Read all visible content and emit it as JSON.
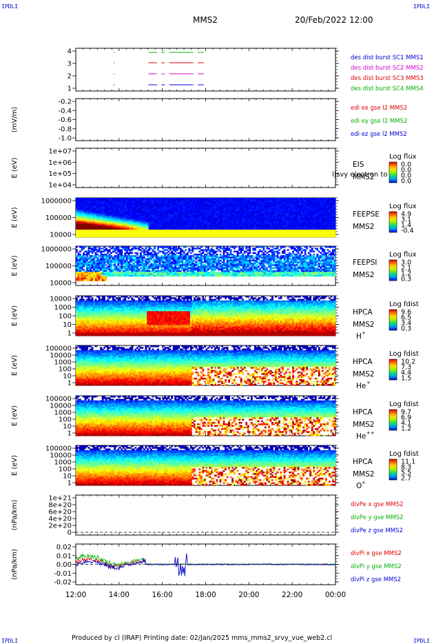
{
  "header": {
    "corner_tl": "IPDLI",
    "corner_tr": "IPDLI",
    "corner_bl": "IPDLI",
    "corner_br": "IPDLI",
    "spacecraft": "MMS2",
    "datetime": "20/Feb/2022 12:00"
  },
  "footer": {
    "text": "Produced by cl (IRAP)   Printing date: 02/Jan/2025   mms_mms2_srvy_vue_web2.cl"
  },
  "colors": {
    "red": "#e00000",
    "green": "#00b000",
    "blue": "#0000d0",
    "magenta": "#d000d0"
  },
  "chart_data": {
    "type": "multi-panel time series",
    "x_ticks": [
      "12:00",
      "14:00",
      "16:00",
      "18:00",
      "20:00",
      "22:00",
      "00:00"
    ],
    "panels": [
      {
        "id": "burst",
        "y_ticks": [
          "4",
          "3",
          "2",
          "1"
        ],
        "legend": [
          {
            "text": "des dist burst SC1 MMS1",
            "color": "#0000d0"
          },
          {
            "text": "des dist burst SC2 MMS2",
            "color": "#d000d0"
          },
          {
            "text": "des dist burst SC3 MMS3",
            "color": "#e00000"
          },
          {
            "text": "des dist burst SC4 MMS4",
            "color": "#00b000"
          }
        ]
      },
      {
        "id": "edi",
        "ylabel": "(mV/m)",
        "y_ticks": [
          "-0.2",
          "-0.4",
          "-0.6",
          "-0.8",
          "-1.0"
        ],
        "legend": [
          {
            "text": "edi ex gse l2 MMS2",
            "color": "#e00000"
          },
          {
            "text": "edi ey gse l2 MMS2",
            "color": "#00b000"
          },
          {
            "text": "edi ez gse l2 MMS2",
            "color": "#0000d0"
          }
        ]
      },
      {
        "id": "eis",
        "ylabel": "E (eV)",
        "y_ticks": [
          "1e+07",
          "1e+06",
          "1e+05",
          "1e+04"
        ],
        "labels": [
          "EIS",
          "MMS2"
        ],
        "overlay_text": "l|svy electron to",
        "cbar_title": "Log flux",
        "cbar_ticks": [
          "0.0",
          "0.0",
          "0.0",
          "0.0"
        ]
      },
      {
        "id": "feepse",
        "ylabel": "E (eV)",
        "y_ticks": [
          "1000000",
          "100000",
          "10000"
        ],
        "labels": [
          "FEEPSE",
          "MMS2"
        ],
        "cbar_title": "Log flux",
        "cbar_ticks": [
          "4.9",
          "3.1",
          "1.4",
          "-0.4"
        ]
      },
      {
        "id": "feepsi",
        "ylabel": "E (eV)",
        "y_ticks": [
          "1000000",
          "100000",
          "10000"
        ],
        "labels": [
          "FEEPSI",
          "MMS2"
        ],
        "cbar_title": "Log flux",
        "cbar_ticks": [
          "3.0",
          "2.1",
          "1.2",
          "0.3"
        ]
      },
      {
        "id": "hpca_h",
        "ylabel": "E (eV)",
        "y_ticks": [
          "10000",
          "1000",
          "100",
          "10",
          "1"
        ],
        "labels": [
          "HPCA",
          "MMS2"
        ],
        "species": "H",
        "species_sup": "+",
        "cbar_title": "Log fdist",
        "cbar_ticks": [
          "9.6",
          "6.5",
          "3.4",
          "0.3"
        ]
      },
      {
        "id": "hpca_he",
        "ylabel": "E (eV)",
        "y_ticks": [
          "100000",
          "10000",
          "1000",
          "100",
          "10",
          "1"
        ],
        "labels": [
          "HPCA",
          "MMS2"
        ],
        "species": "He",
        "species_sup": "+",
        "cbar_title": "Log fdist",
        "cbar_ticks": [
          "10.2",
          "7.3",
          "4.4",
          "1.5"
        ]
      },
      {
        "id": "hpca_hepp",
        "ylabel": "E (eV)",
        "y_ticks": [
          "100000",
          "10000",
          "1000",
          "100",
          "10",
          "1"
        ],
        "labels": [
          "HPCA",
          "MMS2"
        ],
        "species": "He",
        "species_sup": "++",
        "cbar_title": "Log fdist",
        "cbar_ticks": [
          "9.7",
          "6.9",
          "4.1",
          "1.2"
        ]
      },
      {
        "id": "hpca_o",
        "ylabel": "E (eV)",
        "y_ticks": [
          "100000",
          "10000",
          "1000",
          "100",
          "10",
          "1"
        ],
        "labels": [
          "HPCA",
          "MMS2"
        ],
        "species": "O",
        "species_sup": "+",
        "cbar_title": "Log fdist",
        "cbar_ticks": [
          "11.1",
          "8.3",
          "5.5",
          "2.7"
        ]
      },
      {
        "id": "divpe",
        "ylabel": "(nPa/km)",
        "y_ticks": [
          "1e+21",
          "8e+20",
          "6e+20",
          "4e+20",
          "2e+20",
          "0"
        ],
        "legend": [
          {
            "text": "divPe x gse MMS2",
            "color": "#e00000"
          },
          {
            "text": "divPe y gse MMS2",
            "color": "#00b000"
          },
          {
            "text": "divPe z gse MMS2",
            "color": "#0000d0"
          }
        ]
      },
      {
        "id": "divpi",
        "ylabel": "(nPa/km)",
        "y_ticks": [
          "0.02",
          "0.01",
          "0.00",
          "-0.01",
          "-0.02"
        ],
        "ylim": [
          -0.025,
          0.025
        ],
        "legend": [
          {
            "text": "divPi x gse MMS2",
            "color": "#e00000"
          },
          {
            "text": "divPi y gse MMS2",
            "color": "#00b000"
          },
          {
            "text": "divPi z gse MMS2",
            "color": "#0000d0"
          }
        ]
      }
    ]
  }
}
